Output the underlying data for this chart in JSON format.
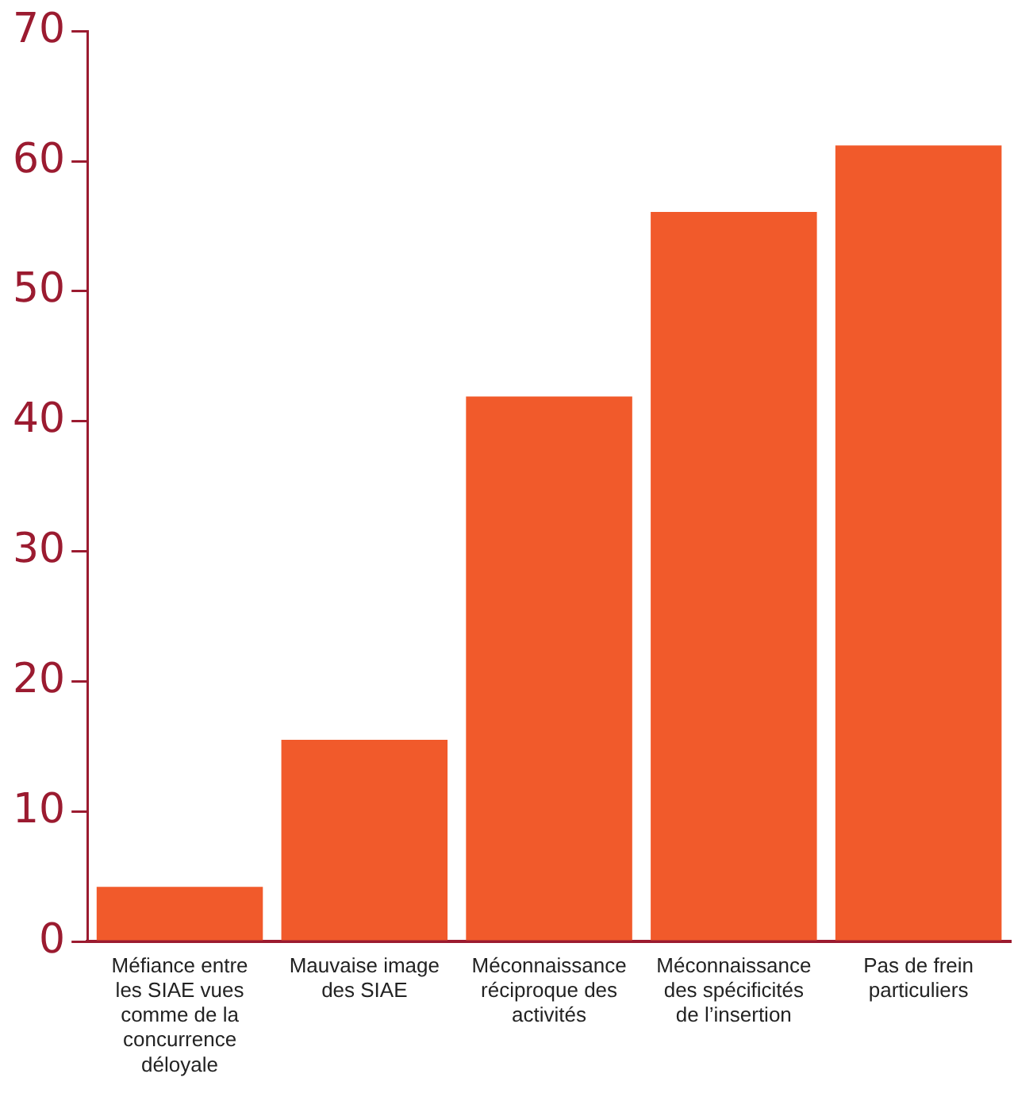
{
  "chart_data": {
    "type": "bar",
    "categories": [
      "Méfiance entre les SIAE vues comme de la concurrence déloyale",
      "Mauvaise image des SIAE",
      "Méconnaissance réciproque des activités",
      "Méconnaissance des spécificités de l’insertion",
      "Pas de frein particuliers"
    ],
    "values": [
      4.2,
      15.5,
      41.9,
      56.1,
      61.2
    ],
    "color": "#f15a2b",
    "ylim": [
      0,
      70
    ],
    "yticks": [
      0,
      10,
      20,
      30,
      40,
      50,
      60,
      70
    ],
    "grid": false
  }
}
